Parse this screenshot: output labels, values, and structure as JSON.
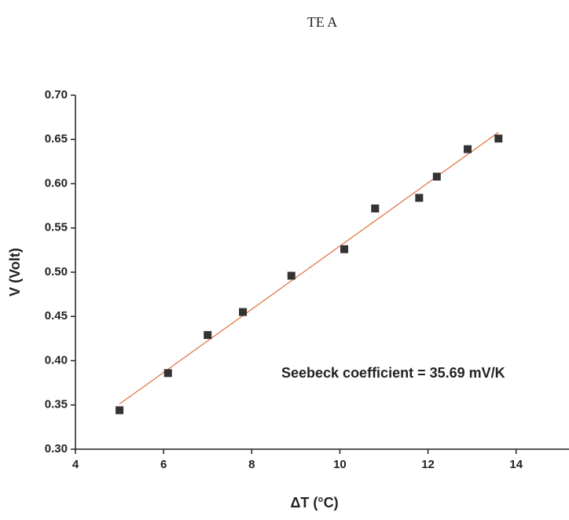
{
  "chart_data": {
    "type": "scatter",
    "title": "TE A",
    "x_label": "ΔT (°C)",
    "y_label": "V (Volt)",
    "annotation": "Seebeck coefficient = 35.69 mV/K",
    "x": [
      5.0,
      6.1,
      7.0,
      7.8,
      8.9,
      10.1,
      10.8,
      11.8,
      12.2,
      12.9,
      13.6
    ],
    "values": [
      0.344,
      0.386,
      0.429,
      0.455,
      0.496,
      0.526,
      0.572,
      0.584,
      0.608,
      0.639,
      0.651
    ],
    "color": "#333333",
    "fit": {
      "slope": 0.03569,
      "intercept": 0.1726,
      "xrange": [
        5.0,
        13.6
      ],
      "color": "#e0703a"
    },
    "xlim": [
      4,
      15.2
    ],
    "ylim": [
      0.3,
      0.7
    ],
    "xticks": [
      4,
      6,
      8,
      10,
      12,
      14
    ],
    "yticks": [
      {
        "value": 0.3,
        "label": "0.30"
      },
      {
        "value": 0.35,
        "label": "0.35"
      },
      {
        "value": 0.4,
        "label": "0.40"
      },
      {
        "value": 0.45,
        "label": "0.45"
      },
      {
        "value": 0.5,
        "label": "0.50"
      },
      {
        "value": 0.55,
        "label": "0.55"
      },
      {
        "value": 0.6,
        "label": "0.60"
      },
      {
        "value": 0.65,
        "label": "0.65"
      },
      {
        "value": 0.7,
        "label": "0.70"
      }
    ]
  }
}
